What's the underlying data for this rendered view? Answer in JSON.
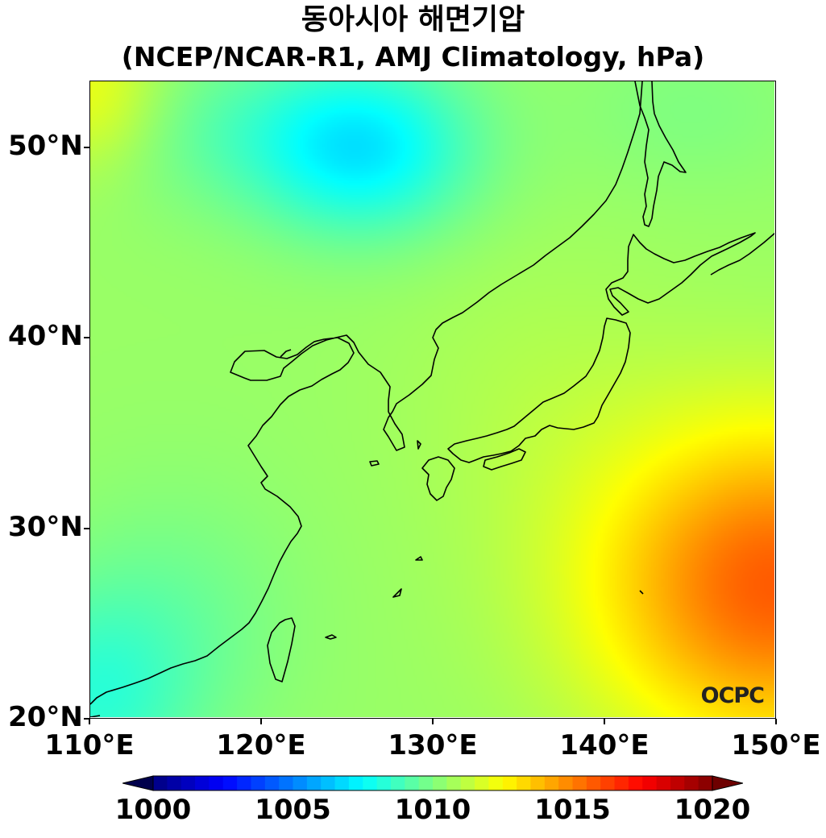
{
  "title": {
    "line1": "동아시아 해면기압",
    "line2": "(NCEP/NCAR-R1, AMJ Climatology, hPa)"
  },
  "logo": "OCPC",
  "axes": {
    "x_ticks": [
      {
        "lon": 110,
        "label": "110°E"
      },
      {
        "lon": 120,
        "label": "120°E"
      },
      {
        "lon": 130,
        "label": "130°E"
      },
      {
        "lon": 140,
        "label": "140°E"
      },
      {
        "lon": 150,
        "label": "150°E"
      }
    ],
    "y_ticks": [
      {
        "lat": 20,
        "label": "20°N"
      },
      {
        "lat": 30,
        "label": "30°N"
      },
      {
        "lat": 40,
        "label": "40°N"
      },
      {
        "lat": 50,
        "label": "50°N"
      }
    ],
    "lon_range": [
      110,
      150
    ],
    "lat_range": [
      20,
      53.5
    ]
  },
  "colorbar": {
    "min": 1000,
    "max": 1020,
    "extend": "both",
    "colormap": "jet",
    "ticks": [
      {
        "value": 1000,
        "label": "1000"
      },
      {
        "value": 1005,
        "label": "1005"
      },
      {
        "value": 1010,
        "label": "1010"
      },
      {
        "value": 1015,
        "label": "1015"
      },
      {
        "value": 1020,
        "label": "1020"
      }
    ]
  },
  "field": {
    "units": "hPa",
    "background_hpa": 1010.5,
    "features": [
      {
        "name": "low-okhotsk-west",
        "lon": 126,
        "lat": 50,
        "delta": -3.2,
        "sx": 4.5,
        "sy": 3.2
      },
      {
        "name": "low-mongolia-north",
        "lon": 118,
        "lat": 51,
        "delta": -1.0,
        "sx": 6,
        "sy": 3
      },
      {
        "name": "high-northwest-corner",
        "lon": 110,
        "lat": 53,
        "delta": 1.8,
        "sx": 3,
        "sy": 3
      },
      {
        "name": "low-southwest-corner",
        "lon": 110,
        "lat": 21,
        "delta": -1.8,
        "sx": 4,
        "sy": 4
      },
      {
        "name": "low-south-china",
        "lon": 115,
        "lat": 25,
        "delta": -0.8,
        "sx": 5,
        "sy": 5
      },
      {
        "name": "high-pacific",
        "lon": 150,
        "lat": 27,
        "delta": 5.2,
        "sx": 7.5,
        "sy": 6
      },
      {
        "name": "high-east-sea",
        "lon": 136,
        "lat": 37,
        "delta": 0.4,
        "sx": 6,
        "sy": 6
      },
      {
        "name": "low-sakhalin",
        "lon": 145,
        "lat": 52,
        "delta": -0.5,
        "sx": 5,
        "sy": 3
      }
    ]
  }
}
